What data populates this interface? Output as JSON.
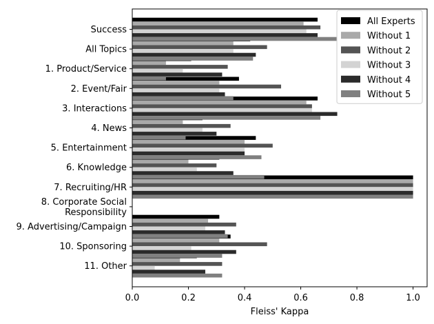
{
  "chart_data": {
    "type": "bar",
    "orientation": "horizontal",
    "xlabel": "Fleiss' Kappa",
    "xlim": [
      0,
      1.05
    ],
    "xticks": [
      "0.0",
      "0.2",
      "0.4",
      "0.6",
      "0.8",
      "1.0"
    ],
    "legend_position": "top-right",
    "grid": false,
    "categories": [
      "Success",
      "All Topics",
      "1. Product/Service",
      "2. Event/Fair",
      "3. Interactions",
      "4. News",
      "5. Entertainment",
      "6. Knowledge",
      "7. Recruiting/HR",
      "8. Corporate Social\nResponsibility",
      "9. Advertising/Campaign",
      "10. Sponsoring",
      "11. Other"
    ],
    "series": [
      {
        "name": "All Experts",
        "color": "#000000",
        "values": [
          0.66,
          0.42,
          0.21,
          0.38,
          0.66,
          0.25,
          0.44,
          0.31,
          1.0,
          null,
          0.31,
          0.35,
          0.23
        ]
      },
      {
        "name": "Without 1",
        "color": "#a9a9a9",
        "values": [
          0.61,
          0.36,
          0.12,
          0.31,
          0.62,
          0.18,
          0.4,
          0.2,
          1.0,
          null,
          0.27,
          0.31,
          0.17
        ]
      },
      {
        "name": "Without 2",
        "color": "#545454",
        "values": [
          0.67,
          0.48,
          0.34,
          0.53,
          0.64,
          0.35,
          0.5,
          0.3,
          1.0,
          null,
          0.37,
          0.48,
          0.32
        ]
      },
      {
        "name": "Without 3",
        "color": "#d3d3d3",
        "values": [
          0.62,
          0.36,
          0.18,
          0.31,
          0.64,
          0.25,
          0.4,
          0.23,
          1.0,
          null,
          0.26,
          0.21,
          0.08
        ]
      },
      {
        "name": "Without 4",
        "color": "#2b2b2b",
        "values": [
          0.66,
          0.44,
          0.32,
          0.33,
          0.73,
          0.3,
          0.4,
          0.36,
          1.0,
          null,
          0.33,
          0.37,
          0.26
        ]
      },
      {
        "name": "Without 5",
        "color": "#808080",
        "values": [
          0.73,
          0.43,
          0.12,
          0.36,
          0.67,
          0.19,
          0.46,
          0.47,
          1.0,
          null,
          0.34,
          0.32,
          0.32
        ]
      }
    ]
  }
}
